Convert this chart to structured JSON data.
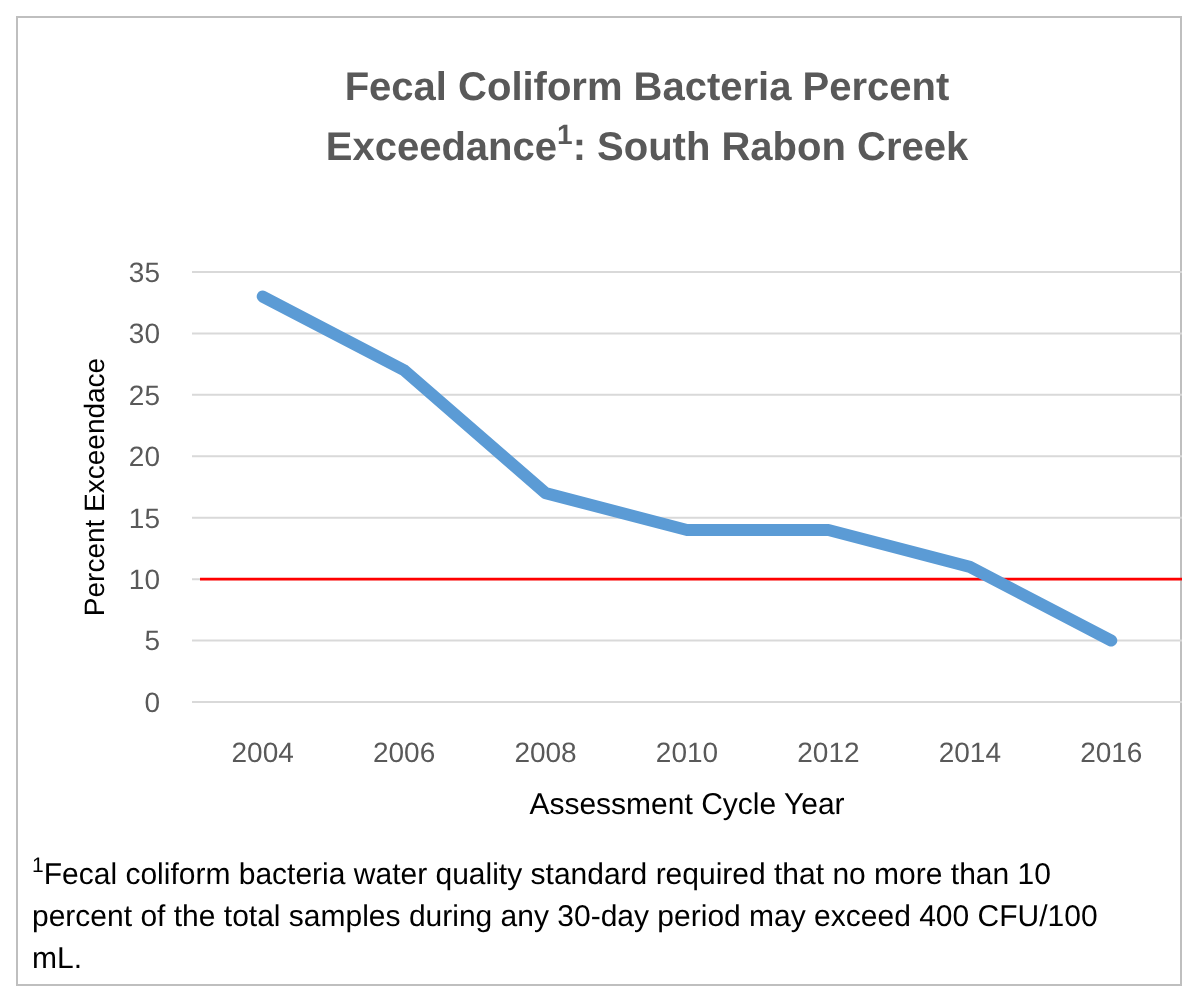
{
  "chart_data": {
    "type": "line",
    "title": "Fecal Coliform Bacteria Percent Exceedance$^{1}$: South Rabon Creek",
    "xlabel": "Assessment Cycle Year",
    "ylabel": "Percent Exceendace",
    "categories": [
      "2004",
      "2006",
      "2008",
      "2010",
      "2012",
      "2014",
      "2016"
    ],
    "series": [
      {
        "color": "#5b9bd5",
        "values": [
          33,
          27,
          17,
          14,
          14,
          11,
          5
        ]
      }
    ],
    "ylim": [
      0,
      35
    ],
    "yticks": [
      0,
      5,
      10,
      15,
      20,
      25,
      30,
      35
    ],
    "grid": "y",
    "marker": "none",
    "line_style": "solid",
    "ref_lines": [
      {
        "axis": "y",
        "value": 10,
        "color": "#ff0000"
      }
    ],
    "annotations": [
      "$^{1}$Fecal coliform bacteria water quality standard required that no more than 10 percent of the total samples during any 30-day period may exceed 400 CFU/100 mL."
    ]
  }
}
